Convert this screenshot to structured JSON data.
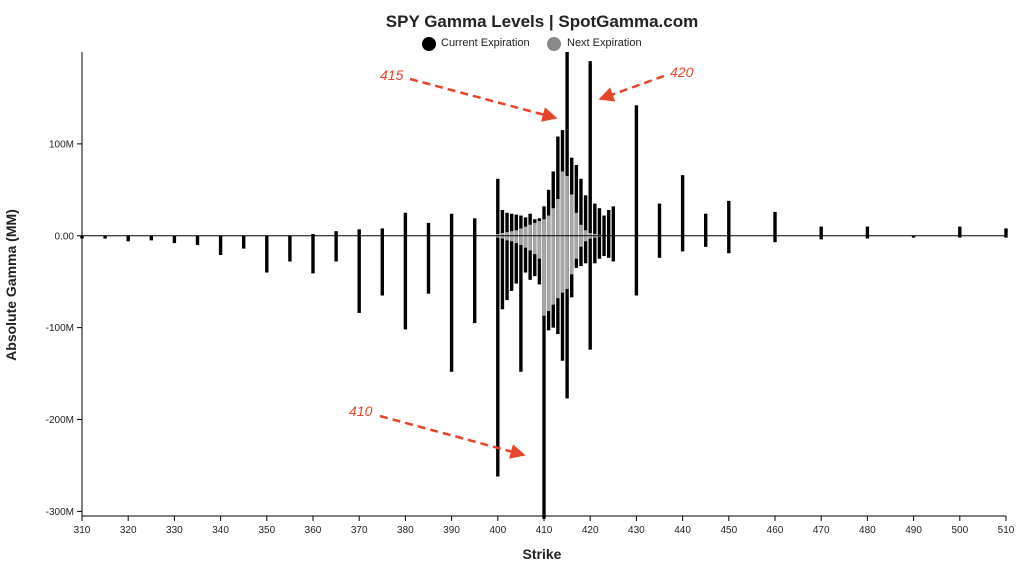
{
  "chart_data": {
    "type": "bar",
    "title": "SPY Gamma Levels | SpotGamma.com",
    "xlabel": "Strike",
    "ylabel": "Absolute Gamma (MM)",
    "xlim": [
      310,
      510
    ],
    "ylim": [
      -305,
      200
    ],
    "x_ticks": [
      "310",
      "320",
      "330",
      "340",
      "350",
      "360",
      "370",
      "380",
      "390",
      "400",
      "410",
      "420",
      "430",
      "440",
      "450",
      "460",
      "470",
      "480",
      "490",
      "500",
      "510"
    ],
    "y_ticks": [
      {
        "value": 100,
        "label": "100M"
      },
      {
        "value": 0,
        "label": "0.00"
      },
      {
        "value": -100,
        "label": "-100M"
      },
      {
        "value": -200,
        "label": "-200M"
      },
      {
        "value": -300,
        "label": "-300M"
      }
    ],
    "colors": {
      "current": "#000000",
      "next": "#a6a6a6",
      "annotation": "#e8442a"
    },
    "legend": {
      "placement": "top-center",
      "current_label": "Current Expiration",
      "next_label": "Next Expiration"
    },
    "series": [
      {
        "name": "Current Expiration",
        "x": [
          310,
          315,
          320,
          325,
          330,
          335,
          340,
          345,
          350,
          355,
          360,
          365,
          370,
          375,
          380,
          385,
          390,
          395,
          400,
          401,
          402,
          403,
          404,
          405,
          406,
          407,
          408,
          409,
          410,
          411,
          412,
          413,
          414,
          415,
          416,
          417,
          418,
          419,
          420,
          421,
          422,
          423,
          424,
          425,
          430,
          435,
          440,
          445,
          450,
          460,
          470,
          480,
          490,
          500,
          510
        ],
        "pos": [
          0,
          0,
          0,
          0,
          0,
          0,
          0,
          0,
          0,
          0,
          2,
          5,
          7,
          8,
          25,
          14,
          24,
          19,
          62,
          28,
          25,
          24,
          23,
          22,
          20,
          24,
          18,
          19,
          32,
          50,
          70,
          108,
          115,
          200,
          85,
          77,
          62,
          44,
          190,
          35,
          30,
          22,
          28,
          32,
          142,
          35,
          66,
          24,
          38,
          26,
          10,
          10,
          0,
          10,
          8
        ],
        "neg": [
          -3,
          -3,
          -6,
          -5,
          -8,
          -10,
          -21,
          -14,
          -40,
          -28,
          -41,
          -28,
          -84,
          -65,
          -102,
          -63,
          -148,
          -95,
          -262,
          -80,
          -70,
          -60,
          -52,
          -148,
          -40,
          -48,
          -44,
          -53,
          -308,
          -103,
          -100,
          -107,
          -136,
          -177,
          -67,
          -35,
          -33,
          -30,
          -124,
          -30,
          -25,
          -22,
          -24,
          -28,
          -65,
          -24,
          -17,
          -12,
          -19,
          -7,
          -4,
          -3,
          -2,
          -2,
          -2
        ]
      },
      {
        "name": "Next Expiration",
        "x": [
          400,
          401,
          402,
          403,
          404,
          405,
          406,
          407,
          408,
          409,
          410,
          411,
          412,
          413,
          414,
          415,
          416,
          417,
          418,
          419,
          420,
          421,
          422
        ],
        "pos": [
          2,
          3,
          4,
          5,
          6,
          8,
          10,
          12,
          14,
          16,
          18,
          22,
          30,
          40,
          70,
          65,
          45,
          25,
          12,
          6,
          3,
          2,
          1
        ],
        "neg": [
          -2,
          -3,
          -5,
          -6,
          -8,
          -10,
          -13,
          -16,
          -20,
          -25,
          -87,
          -82,
          -75,
          -68,
          -62,
          -58,
          -42,
          -25,
          -12,
          -6,
          -3,
          -2,
          -1
        ]
      }
    ],
    "annotations": [
      {
        "label": "415",
        "strike": 415
      },
      {
        "label": "420",
        "strike": 420
      },
      {
        "label": "410",
        "strike": 410
      }
    ]
  }
}
